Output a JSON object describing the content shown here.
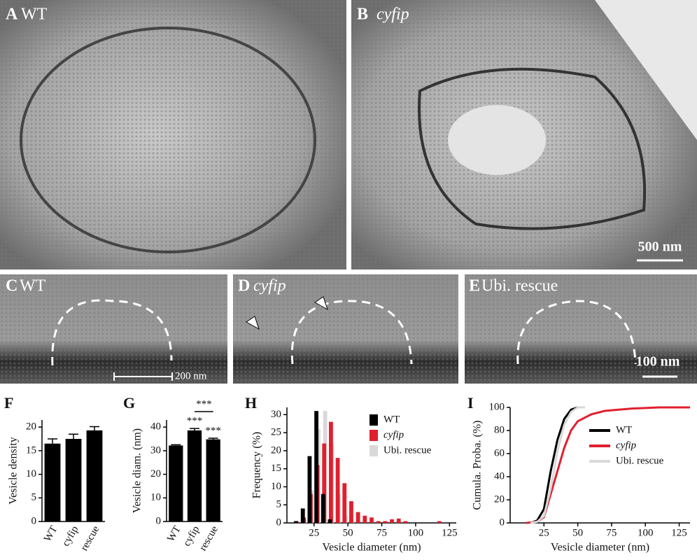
{
  "panels": [
    {
      "letter": "A",
      "label": "WT"
    },
    {
      "letter": "B",
      "label": "cyfip"
    },
    {
      "letter": "C",
      "label": "WT"
    },
    {
      "letter": "D",
      "label": "cyfip"
    },
    {
      "letter": "E",
      "label": "Ubi. rescue"
    }
  ],
  "scale_bars": [
    "500 nm",
    "200 nm",
    "100 nm"
  ],
  "chart_data": [
    {
      "type": "bar",
      "title": "F",
      "ylabel": "Vesicle density",
      "categories": [
        "WT",
        "cyfip",
        "rescue"
      ],
      "values": [
        16.5,
        17.5,
        19.3
      ],
      "errors": [
        1.0,
        1.0,
        0.8
      ],
      "color": "#000000",
      "ylim": [
        0,
        21.5
      ],
      "yticks": [
        0,
        5,
        10,
        15,
        20
      ]
    },
    {
      "type": "bar",
      "title": "G",
      "ylabel": "Vesicle diam. (nm)",
      "categories": [
        "WT",
        "cyfip",
        "rescue"
      ],
      "values": [
        32.2,
        38.6,
        34.8
      ],
      "errors": [
        0.3,
        0.8,
        0.5
      ],
      "color": "#000000",
      "ylim": [
        0,
        43
      ],
      "yticks": [
        0,
        10,
        20,
        30,
        40
      ],
      "annotations": [
        "***",
        "***",
        "***"
      ]
    },
    {
      "type": "histogram",
      "title": "H",
      "xlabel": "Vesicle diameter (nm)",
      "ylabel": "Frequency (%)",
      "bins": [
        10,
        15,
        20,
        25,
        30,
        35,
        40,
        45,
        50,
        55,
        60,
        65,
        70,
        75,
        80,
        85,
        90,
        95,
        100,
        105,
        110,
        115,
        120
      ],
      "series": [
        {
          "name": "Ubi. rescue",
          "color": "#d9d9d9",
          "values": [
            0,
            1,
            9,
            26,
            31,
            22,
            8,
            2,
            0.5,
            0,
            0,
            0,
            0,
            0,
            0,
            0,
            0,
            0,
            0,
            0,
            0,
            0
          ]
        },
        {
          "name": "cyfip",
          "color": "#e0202e",
          "values": [
            0.3,
            1.5,
            8,
            16,
            22,
            28,
            18,
            11,
            6,
            3,
            2,
            1.5,
            0.5,
            0.5,
            1,
            1.2,
            0.5,
            0,
            0,
            0,
            0,
            0.5
          ]
        },
        {
          "name": "WT",
          "color": "#000000",
          "values": [
            0.5,
            4,
            18.5,
            31,
            8,
            1,
            0,
            0,
            0,
            0,
            0,
            0,
            0,
            0,
            0,
            0,
            0,
            0,
            0,
            0,
            0,
            0
          ]
        }
      ],
      "legend_order": [
        "WT",
        "cyfip",
        "Ubi. rescue"
      ],
      "xlim": [
        5,
        130
      ],
      "xticks": [
        25,
        50,
        75,
        100,
        125
      ],
      "ylim": [
        0,
        32
      ],
      "yticks": [
        0,
        5,
        10,
        15,
        20,
        25,
        30
      ]
    },
    {
      "type": "line",
      "title": "I",
      "xlabel": "Vesicle diameter (nm)",
      "ylabel": "Cumula. Proba. (%)",
      "series": [
        {
          "name": "WT",
          "color": "#000000",
          "x": [
            15,
            20,
            25,
            30,
            35,
            40,
            45,
            50,
            55
          ],
          "values": [
            0,
            2,
            12,
            45,
            72,
            90,
            98,
            100,
            100
          ]
        },
        {
          "name": "cyfip",
          "color": "#e0202e",
          "x": [
            12,
            20,
            25,
            30,
            35,
            40,
            45,
            50,
            60,
            70,
            80,
            90,
            100,
            110,
            120,
            133
          ],
          "values": [
            0,
            1,
            5,
            25,
            45,
            65,
            80,
            88,
            94,
            97,
            98,
            99,
            99.5,
            100,
            100,
            100
          ]
        },
        {
          "name": "Ubi. rescue",
          "color": "#d9d9d9",
          "x": [
            15,
            20,
            25,
            30,
            35,
            40,
            45,
            50,
            55
          ],
          "values": [
            0,
            1,
            6,
            30,
            62,
            85,
            96,
            100,
            100
          ]
        }
      ],
      "xlim": [
        0,
        133
      ],
      "xticks": [
        25,
        50,
        75,
        100,
        125
      ],
      "ylim": [
        0,
        100
      ],
      "yticks": [
        0,
        20,
        40,
        60,
        80,
        100
      ]
    }
  ]
}
